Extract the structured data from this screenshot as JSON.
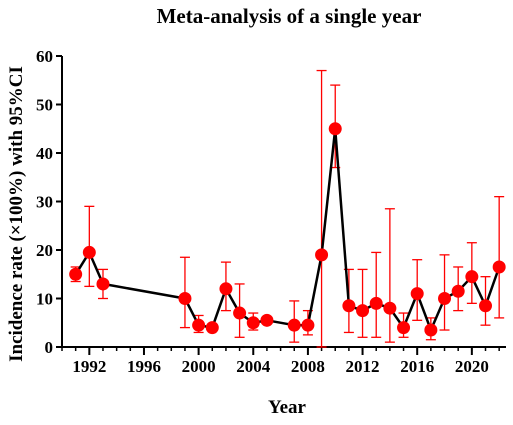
{
  "chart_data": {
    "type": "line",
    "title": "Meta-analysis of a single year",
    "xlabel": "Year",
    "ylabel": "Incidence rate (×100%) with 95%CI",
    "xlim": [
      1990,
      2022.5
    ],
    "ylim": [
      0,
      60
    ],
    "x_ticks": [
      "1992",
      "1996",
      "2000",
      "2004",
      "2008",
      "2012",
      "2016",
      "2020"
    ],
    "y_ticks": [
      "0",
      "10",
      "20",
      "30",
      "40",
      "50",
      "60"
    ],
    "grid": false,
    "colors": {
      "line": "#000000",
      "marker": "#ff0000",
      "error_bar": "#ff0000"
    },
    "series": [
      {
        "points": [
          {
            "x": 1991,
            "y": 15.0,
            "lo": 13.5,
            "hi": 16.5
          },
          {
            "x": 1992,
            "y": 19.5,
            "lo": 12.5,
            "hi": 29.0
          },
          {
            "x": 1993,
            "y": 13.0,
            "lo": 10.0,
            "hi": 16.0
          },
          {
            "x": 1999,
            "y": 10.0,
            "lo": 4.0,
            "hi": 18.5
          },
          {
            "x": 2000,
            "y": 4.5,
            "lo": 3.0,
            "hi": 6.5
          },
          {
            "x": 2001,
            "y": 4.0,
            "lo": 3.5,
            "hi": 4.5
          },
          {
            "x": 2002,
            "y": 12.0,
            "lo": 7.5,
            "hi": 17.5
          },
          {
            "x": 2003,
            "y": 7.0,
            "lo": 2.0,
            "hi": 13.0
          },
          {
            "x": 2004,
            "y": 5.0,
            "lo": 3.5,
            "hi": 7.0
          },
          {
            "x": 2005,
            "y": 5.5,
            "lo": 5.0,
            "hi": 6.0
          },
          {
            "x": 2007,
            "y": 4.5,
            "lo": 1.0,
            "hi": 9.5
          },
          {
            "x": 2008,
            "y": 4.5,
            "lo": 2.5,
            "hi": 7.5
          },
          {
            "x": 2009,
            "y": 19.0,
            "lo": 0.0,
            "hi": 57.0
          },
          {
            "x": 2010,
            "y": 45.0,
            "lo": 37.0,
            "hi": 54.0
          },
          {
            "x": 2011,
            "y": 8.5,
            "lo": 3.0,
            "hi": 16.0
          },
          {
            "x": 2012,
            "y": 7.5,
            "lo": 2.0,
            "hi": 16.0
          },
          {
            "x": 2013,
            "y": 9.0,
            "lo": 2.0,
            "hi": 19.5
          },
          {
            "x": 2014,
            "y": 8.0,
            "lo": 1.0,
            "hi": 28.5
          },
          {
            "x": 2015,
            "y": 4.0,
            "lo": 2.0,
            "hi": 7.0
          },
          {
            "x": 2016,
            "y": 11.0,
            "lo": 5.5,
            "hi": 18.0
          },
          {
            "x": 2017,
            "y": 3.5,
            "lo": 1.5,
            "hi": 6.0
          },
          {
            "x": 2018,
            "y": 10.0,
            "lo": 3.5,
            "hi": 19.0
          },
          {
            "x": 2019,
            "y": 11.5,
            "lo": 7.5,
            "hi": 16.5
          },
          {
            "x": 2020,
            "y": 14.5,
            "lo": 9.0,
            "hi": 21.5
          },
          {
            "x": 2021,
            "y": 8.5,
            "lo": 4.5,
            "hi": 14.5
          },
          {
            "x": 2022,
            "y": 16.5,
            "lo": 6.0,
            "hi": 31.0
          }
        ]
      }
    ]
  }
}
